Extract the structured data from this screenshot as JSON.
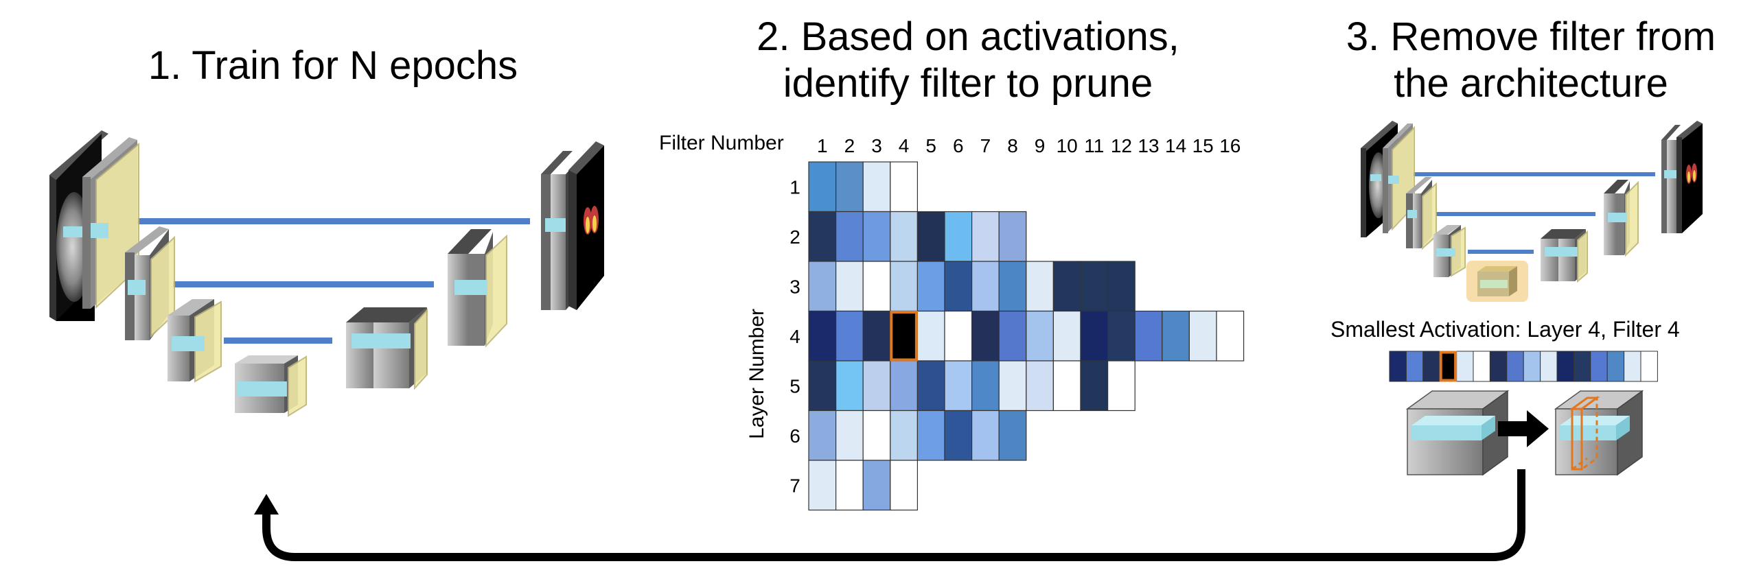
{
  "steps": [
    {
      "title": "1. Train for N epochs"
    },
    {
      "title_line1": "2. Based on activations,",
      "title_line2": "identify filter to prune"
    },
    {
      "title_line1": "3. Remove filter from",
      "title_line2": "the architecture"
    }
  ],
  "grid": {
    "x_label": "Filter Number",
    "y_label": "Layer Number",
    "filter_numbers": [
      "1",
      "2",
      "3",
      "4",
      "5",
      "6",
      "7",
      "8",
      "9",
      "10",
      "11",
      "12",
      "13",
      "14",
      "15",
      "16"
    ],
    "layer_numbers": [
      "1",
      "2",
      "3",
      "4",
      "5",
      "6",
      "7"
    ],
    "highlight": {
      "layer": 4,
      "filter": 4,
      "color": "#e07820"
    },
    "rows": [
      [
        "#4a8fd0",
        "#5a8fc8",
        "#dce9f6",
        "#ffffff"
      ],
      [
        "#24385e",
        "#5b84d4",
        "#6d9ae0",
        "#bcd6ef",
        "#213256",
        "#6cbcf2",
        "#c6d6f2",
        "#8ca8dc"
      ],
      [
        "#8fb0e0",
        "#dfeaf7",
        "#ffffff",
        "#b9d3ee",
        "#6c9ee6",
        "#2f5494",
        "#a6c3ef",
        "#4d86c4",
        "#dfeaf7",
        "#23375e",
        "#22385c",
        "#22375c"
      ],
      [
        "#1a2a6a",
        "#5880d4",
        "#22325a",
        "#000000",
        "#dce9f6",
        "#ffffff",
        "#22305a",
        "#5678cc",
        "#a4c4ee",
        "#dfeaf7",
        "#182866",
        "#243a62",
        "#5578d0",
        "#4f88c4",
        "#dfeaf7",
        "#ffffff"
      ],
      [
        "#24365e",
        "#74c4f4",
        "#bcd0ee",
        "#87a8e0",
        "#2c5090",
        "#a8c8f4",
        "#4e88c8",
        "#dfeaf7",
        "#d0def4",
        "#ffffff",
        "#22365c",
        "#ffffff"
      ],
      [
        "#8cace0",
        "#dfeaf7",
        "#ffffff",
        "#bcd6ef",
        "#6e9ee6",
        "#2f5698",
        "#a4c2ef",
        "#4e86c4"
      ],
      [
        "#dfeaf7",
        "#ffffff",
        "#84a8e0",
        "#ffffff"
      ]
    ]
  },
  "pruning": {
    "caption": "Smallest Activation: Layer 4, Filter 4",
    "strip": [
      "#1a2a6a",
      "#5880d4",
      "#22325a",
      "#000000",
      "#dce9f6",
      "#ffffff",
      "#22305a",
      "#5678cc",
      "#a4c4ee",
      "#dfeaf7",
      "#182866",
      "#243a62",
      "#5578d0",
      "#4f88c4",
      "#dfeaf7",
      "#ffffff"
    ],
    "strip_highlight_index": 3
  },
  "colors": {
    "connection": "#4f7fc8",
    "feature_face": "#9fdde8",
    "yellow_slab": "#f2eeb8",
    "highlight": "#e07820"
  }
}
